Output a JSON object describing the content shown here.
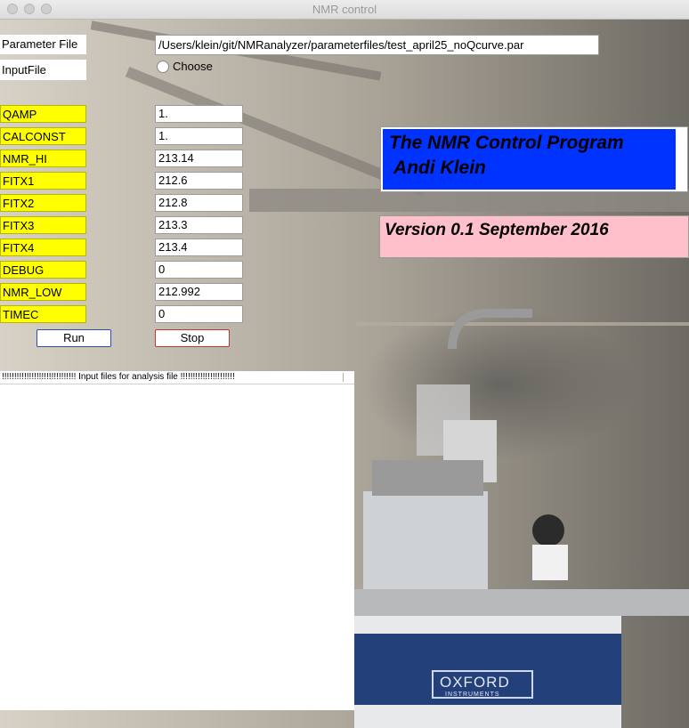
{
  "window": {
    "title": "NMR control"
  },
  "parameter_file": {
    "label": "Parameter File",
    "value": "/Users/klein/git/NMRanalyzer/parameterfiles/test_april25_noQcurve.par"
  },
  "input_file": {
    "label": "InputFile",
    "choose_label": "Choose"
  },
  "params": [
    {
      "label": "QAMP",
      "value": "1."
    },
    {
      "label": "CALCONST",
      "value": "1."
    },
    {
      "label": "NMR_HI",
      "value": "213.14"
    },
    {
      "label": "FITX1",
      "value": "212.6"
    },
    {
      "label": "FITX2",
      "value": "212.8"
    },
    {
      "label": "FITX3",
      "value": "213.3"
    },
    {
      "label": "FITX4",
      "value": "213.4"
    },
    {
      "label": "DEBUG",
      "value": "0"
    },
    {
      "label": "NMR_LOW",
      "value": "212.992"
    },
    {
      "label": "TIMEC",
      "value": "0"
    }
  ],
  "buttons": {
    "run": "Run",
    "stop": "Stop"
  },
  "panel": {
    "header": "!!!!!!!!!!!!!!!!!!!!!!!!!!!!!! Input files for analysis file !!!!!!!!!!!!!!!!!!!!!!"
  },
  "banner": {
    "title_line1": "The NMR Control Program",
    "title_line2": " Andi Klein",
    "version": "Version 0.1 September 2016"
  },
  "background": {
    "logo_text": "OXFORD",
    "logo_sub": "INSTRUMENTS"
  },
  "colors": {
    "param_label_bg": "#ffff00",
    "title_box": "#0033ff",
    "version_box": "#ffc0cb",
    "run_border": "#2a4fb0",
    "stop_border": "#c03b32"
  }
}
